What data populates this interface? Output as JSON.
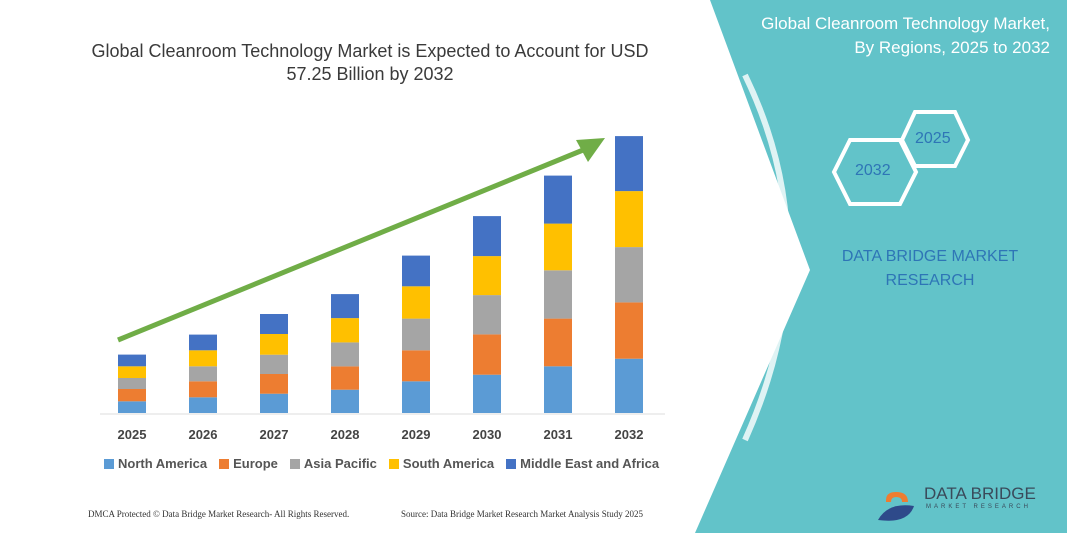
{
  "chart_data": {
    "type": "bar",
    "stacked": true,
    "title": "Global Cleanroom Technology Market is Expected to Account for USD 57.25 Billion by 2032",
    "categories": [
      "2025",
      "2026",
      "2027",
      "2028",
      "2029",
      "2030",
      "2031",
      "2032"
    ],
    "series": [
      {
        "name": "North America",
        "color": "#5b9bd5",
        "values": [
          11.7,
          15.7,
          19.3,
          23.3,
          31.7,
          38.3,
          46.7,
          54.3
        ]
      },
      {
        "name": "Europe",
        "color": "#ed7d31",
        "values": [
          12.3,
          16.0,
          19.7,
          23.3,
          31.0,
          40.3,
          47.7,
          56.3
        ]
      },
      {
        "name": "Asia Pacific",
        "color": "#a5a5a5",
        "values": [
          11.0,
          15.0,
          19.3,
          24.0,
          31.7,
          39.3,
          48.3,
          55.3
        ]
      },
      {
        "name": "South America",
        "color": "#ffc000",
        "values": [
          11.7,
          16.0,
          20.7,
          24.3,
          32.3,
          39.0,
          46.7,
          56.0
        ]
      },
      {
        "name": "Middle East and Africa",
        "color": "#4472c4",
        "values": [
          11.7,
          15.7,
          20.0,
          24.0,
          30.7,
          40.0,
          48.0,
          55.0
        ]
      }
    ],
    "ylim": [
      0,
      280
    ],
    "y_axis_shown": false,
    "grid": false,
    "legend_position": "bottom",
    "trend_arrow_color": "#70ad47"
  },
  "side_panel": {
    "title": "Global Cleanroom Technology Market, By Regions, 2025 to 2032",
    "hex_start": "2025",
    "hex_end": "2032",
    "brand": "DATA BRIDGE MARKET RESEARCH",
    "color": "#62c3c9"
  },
  "footer": {
    "left": "DMCA Protected © Data Bridge Market Research- All Rights Reserved.",
    "right": "Source: Data Bridge Market Research Market Analysis Study 2025"
  },
  "logo": {
    "name": "DATA BRIDGE",
    "sub": "MARKET RESEARCH"
  }
}
